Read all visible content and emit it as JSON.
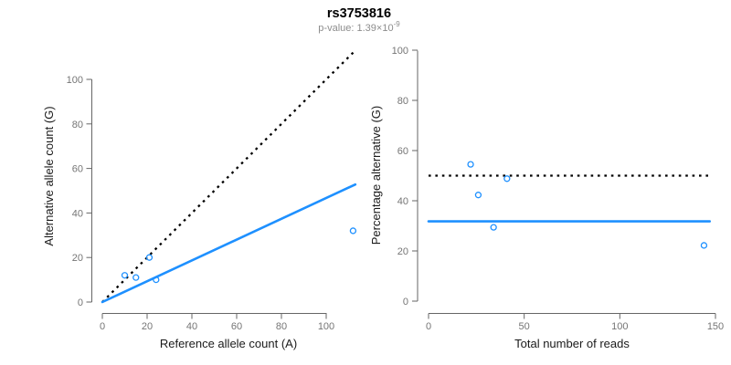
{
  "header": {
    "title": "rs3753816",
    "pvalue_prefix": "p-value: 1.39×10",
    "pvalue_exponent": "-9"
  },
  "colors": {
    "series_blue": "#1E90FF",
    "reference_black": "#000000",
    "axis_line": "#666666",
    "tick_label": "#757575",
    "axis_title": "#1a1a1a",
    "subtitle_gray": "#8c8c8c"
  },
  "chart_data": [
    {
      "type": "scatter",
      "name": "allele-count-scatter",
      "xlabel": "Reference allele count (A)",
      "ylabel": "Alternative allele count (G)",
      "xlim": [
        0,
        113
      ],
      "ylim": [
        0,
        113
      ],
      "xticks": [
        0,
        20,
        40,
        60,
        80,
        100
      ],
      "yticks": [
        0,
        20,
        40,
        60,
        80,
        100
      ],
      "grid": false,
      "legend": "none",
      "points": [
        {
          "x": 10,
          "y": 12
        },
        {
          "x": 15,
          "y": 11
        },
        {
          "x": 21,
          "y": 20
        },
        {
          "x": 24,
          "y": 10
        },
        {
          "x": 112,
          "y": 32
        }
      ],
      "lines": [
        {
          "name": "identity-line",
          "style": "dotted",
          "color": "#000000",
          "x1": 0,
          "y1": 0,
          "x2": 113,
          "y2": 113
        },
        {
          "name": "fit-line",
          "style": "solid",
          "color": "#1E90FF",
          "x1": 0,
          "y1": 0,
          "x2": 113,
          "y2": 52.8
        }
      ]
    },
    {
      "type": "scatter",
      "name": "percentage-vs-reads-scatter",
      "xlabel": "Total number of reads",
      "ylabel": "Percentage alternative (G)",
      "xlim": [
        0,
        150
      ],
      "ylim": [
        0,
        100
      ],
      "xticks": [
        0,
        50,
        100,
        150
      ],
      "yticks": [
        0,
        20,
        40,
        60,
        80,
        100
      ],
      "grid": false,
      "legend": "none",
      "points": [
        {
          "x": 22,
          "y": 54.5
        },
        {
          "x": 26,
          "y": 42.3
        },
        {
          "x": 41,
          "y": 48.8
        },
        {
          "x": 34,
          "y": 29.4
        },
        {
          "x": 144,
          "y": 22.2
        }
      ],
      "lines": [
        {
          "name": "expected-50-line",
          "style": "dotted",
          "color": "#000000",
          "x1": 0,
          "y1": 50,
          "x2": 147,
          "y2": 50
        },
        {
          "name": "mean-percentage-line",
          "style": "solid",
          "color": "#1E90FF",
          "x1": 0,
          "y1": 31.8,
          "x2": 147,
          "y2": 31.8
        }
      ]
    }
  ]
}
